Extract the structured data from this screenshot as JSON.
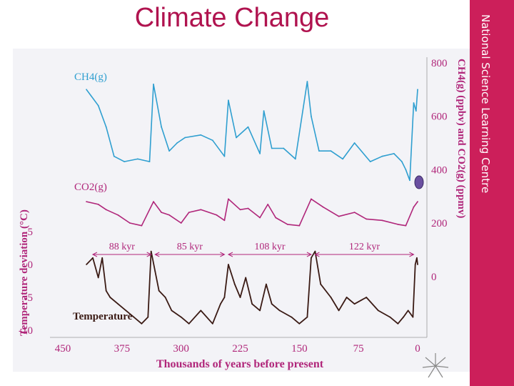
{
  "slide": {
    "title": "Climate Change",
    "band_text": "National Science Learning Centre"
  },
  "colors": {
    "title": "#b0134f",
    "band": "#cc1f5a",
    "ch4": "#2f9fd0",
    "co2": "#b0267a",
    "temperature": "#3a1a14",
    "axis_text": "#b0267a",
    "background": "#f3f3f7"
  },
  "chart_data": {
    "type": "line",
    "x_axis": {
      "label": "Thousands of years before present",
      "ticks": [
        "450",
        "375",
        "300",
        "225",
        "150",
        "75",
        "0"
      ],
      "range": [
        450,
        0
      ]
    },
    "left_axis": {
      "label": "Temperature deviation (°C)",
      "ticks": [
        "5",
        "0",
        "-5",
        "-10"
      ],
      "range": [
        -10,
        5
      ]
    },
    "right_axis": {
      "label": "CH4(g) (ppbv) and CO2(g) (ppmv)",
      "ticks": [
        "800",
        "600",
        "400",
        "200"
      ],
      "temp_tick": "0"
    },
    "series": [
      {
        "name": "CH4(g)",
        "units": "ppbv",
        "x": [
          420,
          405,
          395,
          385,
          372,
          355,
          340,
          335,
          325,
          315,
          305,
          295,
          275,
          260,
          245,
          240,
          230,
          215,
          200,
          195,
          185,
          170,
          155,
          140,
          135,
          125,
          110,
          95,
          80,
          60,
          45,
          30,
          20,
          15,
          10,
          5,
          2,
          0
        ],
        "values": [
          700,
          640,
          560,
          450,
          430,
          440,
          430,
          720,
          560,
          470,
          500,
          520,
          530,
          510,
          450,
          660,
          520,
          560,
          460,
          620,
          480,
          480,
          440,
          730,
          600,
          470,
          470,
          440,
          500,
          430,
          450,
          460,
          430,
          400,
          360,
          650,
          620,
          700
        ]
      },
      {
        "name": "CO2(g)",
        "units": "ppmv",
        "x": [
          420,
          405,
          395,
          380,
          365,
          350,
          335,
          325,
          315,
          300,
          290,
          275,
          255,
          245,
          240,
          225,
          215,
          200,
          190,
          180,
          165,
          150,
          135,
          120,
          100,
          80,
          65,
          45,
          25,
          15,
          5,
          0
        ],
        "values": [
          280,
          270,
          250,
          230,
          200,
          190,
          280,
          240,
          230,
          200,
          240,
          250,
          230,
          210,
          290,
          250,
          255,
          220,
          270,
          220,
          195,
          190,
          290,
          260,
          225,
          240,
          215,
          210,
          195,
          190,
          260,
          280
        ]
      },
      {
        "name": "Temperature",
        "units": "°C",
        "x": [
          420,
          412,
          405,
          400,
          395,
          390,
          380,
          370,
          360,
          350,
          342,
          338,
          333,
          328,
          320,
          312,
          300,
          290,
          275,
          260,
          250,
          245,
          240,
          232,
          225,
          218,
          210,
          200,
          192,
          185,
          175,
          160,
          150,
          140,
          135,
          130,
          123,
          110,
          100,
          90,
          80,
          65,
          50,
          35,
          25,
          18,
          12,
          6,
          3,
          1,
          0
        ],
        "values": [
          0,
          1,
          -2,
          1,
          -4,
          -5,
          -6,
          -7,
          -8,
          -9,
          -8,
          2,
          -1,
          -4,
          -5,
          -7,
          -8,
          -9,
          -7,
          -9,
          -6,
          -5,
          0,
          -3,
          -5,
          -2,
          -6,
          -7,
          -3,
          -6,
          -7,
          -8,
          -9,
          -8,
          1,
          2,
          -3,
          -5,
          -7,
          -5,
          -6,
          -5,
          -7,
          -8,
          -9,
          -8,
          -7,
          -8,
          0,
          1,
          0
        ]
      }
    ],
    "annotations": [
      {
        "text": "88 kyr",
        "from": 412,
        "to": 338
      },
      {
        "text": "85 kyr",
        "from": 333,
        "to": 245
      },
      {
        "text": "108 kyr",
        "from": 240,
        "to": 135
      },
      {
        "text": "122 kyr",
        "from": 130,
        "to": 5
      }
    ]
  }
}
